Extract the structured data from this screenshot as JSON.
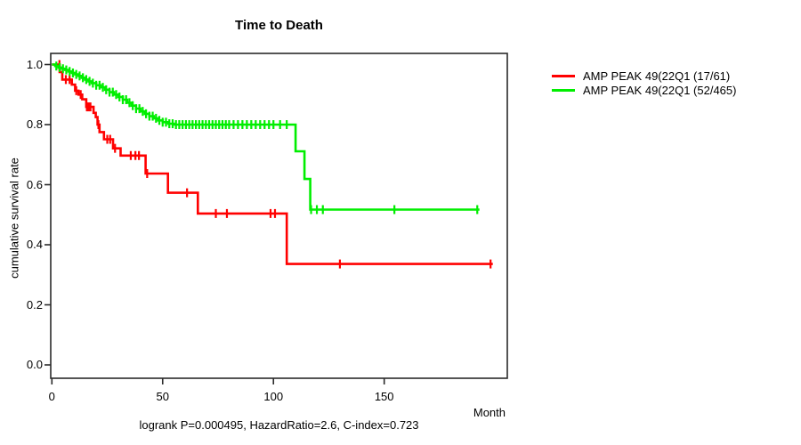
{
  "chart_data": {
    "type": "line",
    "subtype": "kaplan-meier-step",
    "title": "Time to Death",
    "xlabel": "Month",
    "ylabel": "cumulative survival rate",
    "annotation": "logrank P=0.000495, HazardRatio=2.6, C-index=0.723",
    "grid": false,
    "legend_position": "right-outside",
    "xlim": [
      0,
      206
    ],
    "ylim": [
      0.0,
      1.0
    ],
    "x_ticks": [
      {
        "label": "0",
        "value": 0
      },
      {
        "label": "50",
        "value": 50
      },
      {
        "label": "100",
        "value": 100
      },
      {
        "label": "150",
        "value": 150
      }
    ],
    "y_ticks": [
      {
        "label": "0.0",
        "value": 0.0
      },
      {
        "label": "0.2",
        "value": 0.2
      },
      {
        "label": "0.4",
        "value": 0.4
      },
      {
        "label": "0.6",
        "value": 0.6
      },
      {
        "label": "0.8",
        "value": 0.8
      },
      {
        "label": "1.0",
        "value": 1.0
      }
    ],
    "frame_color": "#2b2b2b",
    "series": [
      {
        "name": "AMP PEAK 49(22Q1 (17/61)",
        "color": "#ff0000",
        "steps": [
          [
            0,
            1.0
          ],
          [
            3.5,
            0.975
          ],
          [
            4.7,
            0.95
          ],
          [
            9,
            0.933
          ],
          [
            10.5,
            0.913
          ],
          [
            12,
            0.9
          ],
          [
            13.7,
            0.884
          ],
          [
            15.5,
            0.859
          ],
          [
            18.8,
            0.839
          ],
          [
            19.8,
            0.825
          ],
          [
            20.6,
            0.8
          ],
          [
            21.5,
            0.775
          ],
          [
            23.5,
            0.751
          ],
          [
            27.6,
            0.721
          ],
          [
            31,
            0.697
          ],
          [
            42.3,
            0.637
          ],
          [
            52.4,
            0.573
          ],
          [
            65.9,
            0.504
          ],
          [
            106,
            0.336
          ]
        ],
        "end_month": 199,
        "censor_months": [
          3.4,
          6.3,
          8,
          11,
          13,
          15.8,
          16.6,
          17.4,
          21,
          25,
          26.3,
          28.5,
          35.6,
          37.7,
          39.3,
          43,
          61,
          74,
          79,
          98.7,
          100.7,
          130,
          198
        ]
      },
      {
        "name": "AMP PEAK 49(22Q1 (52/465)",
        "color": "#00ee00",
        "steps": [
          [
            0,
            1.0
          ],
          [
            1.5,
            0.995
          ],
          [
            3,
            0.99
          ],
          [
            4.5,
            0.986
          ],
          [
            6,
            0.982
          ],
          [
            7.5,
            0.977
          ],
          [
            9,
            0.972
          ],
          [
            10.5,
            0.967
          ],
          [
            12,
            0.962
          ],
          [
            13.5,
            0.956
          ],
          [
            15,
            0.95
          ],
          [
            16.5,
            0.944
          ],
          [
            18,
            0.938
          ],
          [
            20,
            0.931
          ],
          [
            22,
            0.924
          ],
          [
            24,
            0.916
          ],
          [
            26,
            0.908
          ],
          [
            28,
            0.9
          ],
          [
            30,
            0.892
          ],
          [
            32,
            0.883
          ],
          [
            34,
            0.873
          ],
          [
            36,
            0.863
          ],
          [
            38,
            0.853
          ],
          [
            40,
            0.844
          ],
          [
            42,
            0.836
          ],
          [
            44,
            0.828
          ],
          [
            46,
            0.821
          ],
          [
            48,
            0.814
          ],
          [
            50,
            0.808
          ],
          [
            52.5,
            0.803
          ],
          [
            55,
            0.8
          ],
          [
            110,
            0.711
          ],
          [
            114,
            0.619
          ],
          [
            116.6,
            0.517
          ]
        ],
        "end_month": 193,
        "censor_months": [
          2,
          3.5,
          5,
          6.5,
          8,
          9.5,
          11,
          12.5,
          14,
          15.5,
          17,
          18.5,
          20,
          21.5,
          23,
          24.5,
          26,
          27.5,
          29,
          30.5,
          32,
          33.5,
          35,
          36.5,
          38,
          39.5,
          41,
          42.5,
          44,
          45.5,
          47,
          48.5,
          50,
          51.5,
          53,
          54.5,
          56,
          57.5,
          59,
          60.5,
          62,
          63.5,
          65,
          66.5,
          68,
          69.5,
          71,
          72.5,
          74,
          75.5,
          77,
          78.5,
          80,
          82,
          84,
          86,
          88,
          90,
          92,
          94,
          96,
          98,
          100,
          103,
          106,
          117,
          119.6,
          122.3,
          154.6,
          192
        ]
      }
    ]
  }
}
